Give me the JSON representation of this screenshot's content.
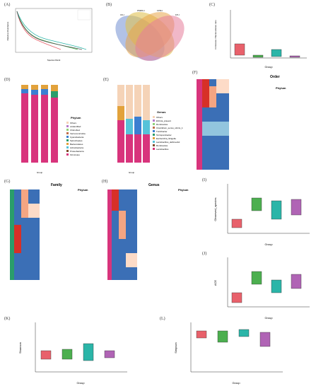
{
  "panels": {
    "A": {
      "label": "(A)",
      "xlabel": "Species Rank",
      "ylabel": "Relative Abundance",
      "legend": [
        "CK-I",
        "PMMC-I",
        "FPM-I",
        "FP-I"
      ]
    },
    "B": {
      "label": "(B)",
      "sets": [
        "CK-I",
        "PMMC-I",
        "FPM-I",
        "FP-I"
      ]
    },
    "C": {
      "label": "(C)",
      "ylabel": "Firmicutes / Bacteroidetes ratio",
      "xlabel": "Group",
      "yticks": [
        "0",
        "20",
        "40",
        "60",
        "80",
        "100"
      ]
    },
    "D": {
      "label": "(D)",
      "ylabel": "Relative Abundance (%)",
      "xlabel": "Group",
      "legend_title": "Phylum",
      "legend": [
        "Others",
        "unidentified",
        "Chloroflexi",
        "Verrucomicrobia",
        "Cyanobacteria",
        "Spirochaetes",
        "Bacteroidetes",
        "Actinobacteria",
        "Proteobacteria",
        "Firmicutes"
      ]
    },
    "E": {
      "label": "(E)",
      "ylabel": "Relative Abundance (%)",
      "xlabel": "Group",
      "legend_title": "Genus",
      "legend": [
        "Others",
        "Ehrinia_praeeni",
        "Romboutsia",
        "Clostridium_sensu_stricto_1",
        "Turicibacter",
        "Terrisporobacter",
        "Escherichia_Shigella",
        "Lactobacillus_delbrueckii",
        "Romboutsia",
        "Lactobacillus"
      ]
    },
    "F": {
      "label": "(F)",
      "title": "Order",
      "legend_title": "Phylum"
    },
    "G": {
      "label": "(G)",
      "title": "Family",
      "legend_title": "Phylum"
    },
    "H": {
      "label": "(H)",
      "title": "Genus",
      "legend_title": "Phylum"
    },
    "I": {
      "label": "(I)",
      "ylabel": "Observed_species",
      "xlabel": "Group"
    },
    "J": {
      "label": "(J)",
      "ylabel": "ACE",
      "xlabel": "Group"
    },
    "K": {
      "label": "(K)",
      "ylabel": "Shannon",
      "xlabel": "Group"
    },
    "L": {
      "label": "(L)",
      "ylabel": "Simpson",
      "xlabel": "Group"
    }
  },
  "groups": [
    "CK-I",
    "PMMC-I",
    "FPM-I",
    "FP-I"
  ],
  "colors": {
    "group1": "#e8616b",
    "group2": "#4caf4f",
    "group3": "#2bb5a8",
    "group4": "#b064b5",
    "pie_sets": [
      "#7f9ad6",
      "#e0c253",
      "#e8a64a",
      "#e57d9b"
    ]
  },
  "chart_data": [
    {
      "panel": "D",
      "type": "bar",
      "categories": [
        "CK-I",
        "PMMC-I",
        "FPM-I",
        "FP-I"
      ],
      "series": [
        {
          "name": "Firmicutes",
          "values": [
            76,
            74,
            74,
            74
          ]
        },
        {
          "name": "Proteobacteria",
          "values": [
            10,
            12,
            12,
            8
          ]
        },
        {
          "name": "Actinobacteria",
          "values": [
            5,
            5,
            5,
            6
          ]
        },
        {
          "name": "Bacteroidetes",
          "values": [
            4,
            4,
            4,
            5
          ]
        },
        {
          "name": "Others",
          "values": [
            5,
            5,
            5,
            7
          ]
        }
      ]
    },
    {
      "panel": "E",
      "type": "bar",
      "categories": [
        "CK-I",
        "PMMC-I",
        "FPM-I",
        "FP-I"
      ],
      "series": [
        {
          "name": "Lactobacillus",
          "values": [
            38,
            8,
            8,
            8
          ]
        },
        {
          "name": "Romboutsia",
          "values": [
            20,
            28,
            30,
            28
          ]
        },
        {
          "name": "Escherichia_Shigella",
          "values": [
            8,
            14,
            14,
            14
          ]
        },
        {
          "name": "Turicibacter",
          "values": [
            6,
            8,
            8,
            8
          ]
        },
        {
          "name": "Others",
          "values": [
            28,
            42,
            40,
            42
          ]
        }
      ]
    },
    {
      "panel": "I",
      "type": "box",
      "categories": [
        "CK-I",
        "PMMC-I",
        "FPM-I",
        "FP-I"
      ],
      "medians": [
        180,
        520,
        430,
        480
      ]
    },
    {
      "panel": "K",
      "type": "box",
      "categories": [
        "CK-I",
        "PMMC-I",
        "FPM-I",
        "FP-I"
      ],
      "medians": [
        3.2,
        3.4,
        4.1,
        3.3
      ]
    }
  ]
}
